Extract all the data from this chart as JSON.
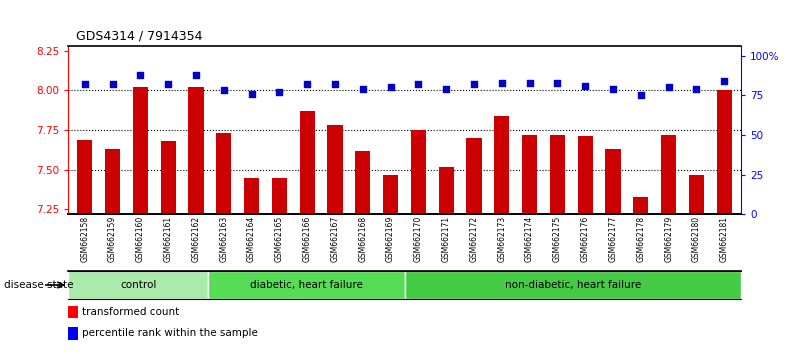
{
  "title": "GDS4314 / 7914354",
  "samples": [
    "GSM662158",
    "GSM662159",
    "GSM662160",
    "GSM662161",
    "GSM662162",
    "GSM662163",
    "GSM662164",
    "GSM662165",
    "GSM662166",
    "GSM662167",
    "GSM662168",
    "GSM662169",
    "GSM662170",
    "GSM662171",
    "GSM662172",
    "GSM662173",
    "GSM662174",
    "GSM662175",
    "GSM662176",
    "GSM662177",
    "GSM662178",
    "GSM662179",
    "GSM662180",
    "GSM662181"
  ],
  "bar_values": [
    7.69,
    7.63,
    8.02,
    7.68,
    8.02,
    7.73,
    7.45,
    7.45,
    7.87,
    7.78,
    7.62,
    7.47,
    7.75,
    7.52,
    7.7,
    7.84,
    7.72,
    7.72,
    7.71,
    7.63,
    7.33,
    7.72,
    7.47,
    8.0
  ],
  "percentile_values": [
    82,
    82,
    88,
    82,
    88,
    78,
    76,
    77,
    82,
    82,
    79,
    80,
    82,
    79,
    82,
    83,
    83,
    83,
    81,
    79,
    75,
    80,
    79,
    84
  ],
  "groups": [
    {
      "label": "control",
      "start": 0,
      "end": 5
    },
    {
      "label": "diabetic, heart failure",
      "start": 5,
      "end": 12
    },
    {
      "label": "non-diabetic, heart failure",
      "start": 12,
      "end": 24
    }
  ],
  "group_colors": [
    "#aaeaaa",
    "#55dd55",
    "#44cc44"
  ],
  "ylim_left": [
    7.22,
    8.28
  ],
  "ylim_right": [
    0,
    106
  ],
  "yticks_left": [
    7.25,
    7.5,
    7.75,
    8.0,
    8.25
  ],
  "yticks_right": [
    0,
    25,
    50,
    75,
    100
  ],
  "ytick_right_labels": [
    "0",
    "25",
    "50",
    "75",
    "100%"
  ],
  "hlines": [
    8.0,
    7.75,
    7.5
  ],
  "bar_color": "#CC0000",
  "dot_color": "#0000CC",
  "bar_width": 0.55,
  "background_color": "#FFFFFF",
  "xtick_bg_color": "#CCCCCC",
  "bar_bottom": 7.22
}
